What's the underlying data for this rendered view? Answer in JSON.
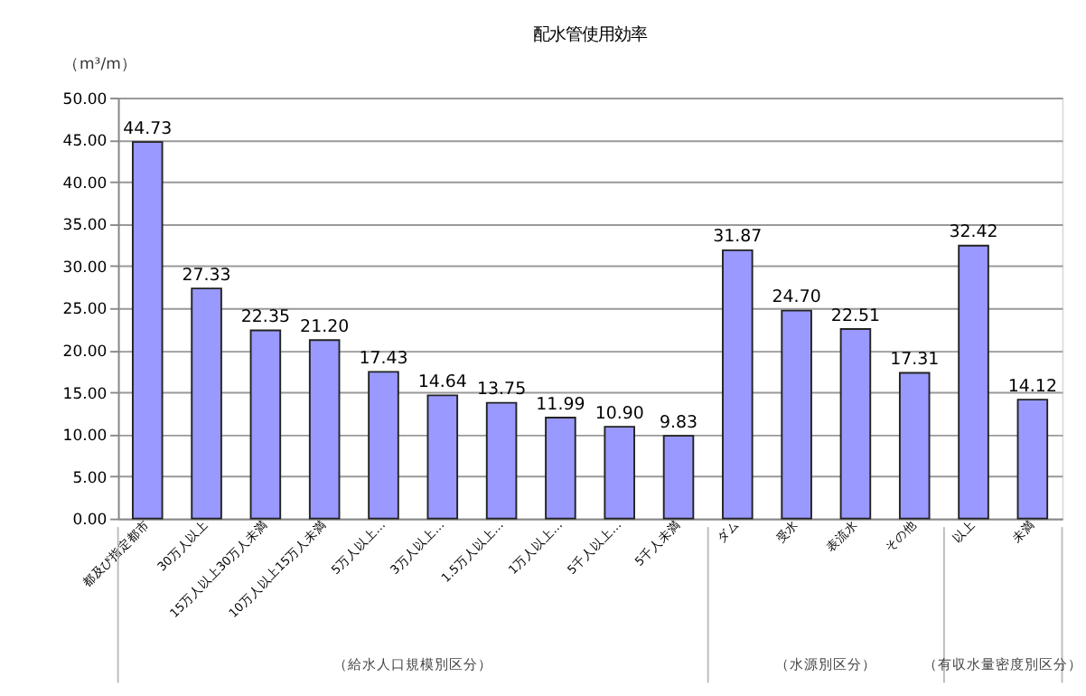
{
  "chart_data": {
    "type": "bar",
    "title": "配水管使用効率",
    "ylabel": "（m³/m）",
    "categories": [
      "都及び指定都市",
      "30万人以上",
      "15万人以上30万人未満",
      "10万人以上15万人未満",
      "5万人以上…",
      "3万人以上…",
      "1.5万人以上…",
      "1万人以上…",
      "5千人以上…",
      "5千人未満",
      "ダム",
      "受水",
      "表流水",
      "その他",
      "以上",
      "未満"
    ],
    "values": [
      44.73,
      27.33,
      22.35,
      21.2,
      17.43,
      14.64,
      13.75,
      11.99,
      10.9,
      9.83,
      31.87,
      24.7,
      22.51,
      17.31,
      32.42,
      14.12
    ],
    "color": "#9999ff",
    "ylim": [
      0,
      50
    ],
    "yticks": [
      {
        "value": 0,
        "label": "0.00"
      },
      {
        "value": 5,
        "label": "5.00"
      },
      {
        "value": 10,
        "label": "10.00"
      },
      {
        "value": 15,
        "label": "15.00"
      },
      {
        "value": 20,
        "label": "20.00"
      },
      {
        "value": 25,
        "label": "25.00"
      },
      {
        "value": 30,
        "label": "30.00"
      },
      {
        "value": 35,
        "label": "35.00"
      },
      {
        "value": 40,
        "label": "40.00"
      },
      {
        "value": 45,
        "label": "45.00"
      },
      {
        "value": 50,
        "label": "50.00"
      }
    ],
    "value_labels": [
      "44.73",
      "27.33",
      "22.35",
      "21.20",
      "17.43",
      "14.64",
      "13.75",
      "11.99",
      "10.90",
      "9.83",
      "31.87",
      "24.70",
      "22.51",
      "17.31",
      "32.42",
      "14.12"
    ],
    "grid": "y",
    "annotations": [
      "（給水人口規模別区分）",
      "（水源別区分）",
      "（有収水量密度別区分）"
    ]
  }
}
